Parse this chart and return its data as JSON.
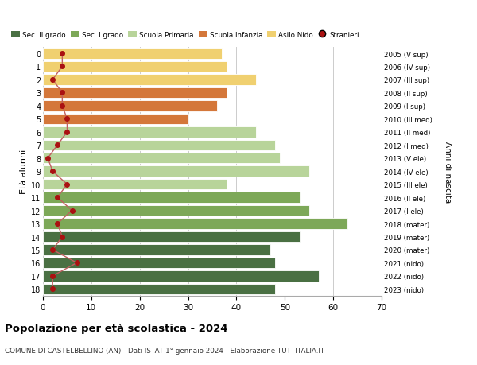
{
  "ages": [
    18,
    17,
    16,
    15,
    14,
    13,
    12,
    11,
    10,
    9,
    8,
    7,
    6,
    5,
    4,
    3,
    2,
    1,
    0
  ],
  "labels_right": [
    "2005 (V sup)",
    "2006 (IV sup)",
    "2007 (III sup)",
    "2008 (II sup)",
    "2009 (I sup)",
    "2010 (III med)",
    "2011 (II med)",
    "2012 (I med)",
    "2013 (V ele)",
    "2014 (IV ele)",
    "2015 (III ele)",
    "2016 (II ele)",
    "2017 (I ele)",
    "2018 (mater)",
    "2019 (mater)",
    "2020 (mater)",
    "2021 (nido)",
    "2022 (nido)",
    "2023 (nido)"
  ],
  "bar_values": [
    48,
    57,
    48,
    47,
    53,
    63,
    55,
    53,
    38,
    55,
    49,
    48,
    44,
    30,
    36,
    38,
    44,
    38,
    37
  ],
  "stranieri": [
    2,
    2,
    7,
    2,
    4,
    3,
    6,
    3,
    5,
    2,
    1,
    3,
    5,
    5,
    4,
    4,
    2,
    4,
    4
  ],
  "bar_colors": [
    "#4a7043",
    "#4a7043",
    "#4a7043",
    "#4a7043",
    "#4a7043",
    "#7da858",
    "#7da858",
    "#7da858",
    "#b8d49a",
    "#b8d49a",
    "#b8d49a",
    "#b8d49a",
    "#b8d49a",
    "#d4773a",
    "#d4773a",
    "#d4773a",
    "#f0d070",
    "#f0d070",
    "#f0d070"
  ],
  "legend_labels": [
    "Sec. II grado",
    "Sec. I grado",
    "Scuola Primaria",
    "Scuola Infanzia",
    "Asilo Nido",
    "Stranieri"
  ],
  "legend_colors": [
    "#4a7043",
    "#7da858",
    "#b8d49a",
    "#d4773a",
    "#f0d070",
    "#aa1111"
  ],
  "ylabel": "Età alunni",
  "ylabel2": "Anni di nascita",
  "title": "Popolazione per età scolastica - 2024",
  "subtitle": "COMUNE DI CASTELBELLINO (AN) - Dati ISTAT 1° gennaio 2024 - Elaborazione TUTTITALIA.IT",
  "xlim": [
    0,
    70
  ],
  "bg_color": "#ffffff",
  "grid_color": "#cccccc",
  "stranieri_color": "#aa1111",
  "stranieri_line_color": "#c06060"
}
